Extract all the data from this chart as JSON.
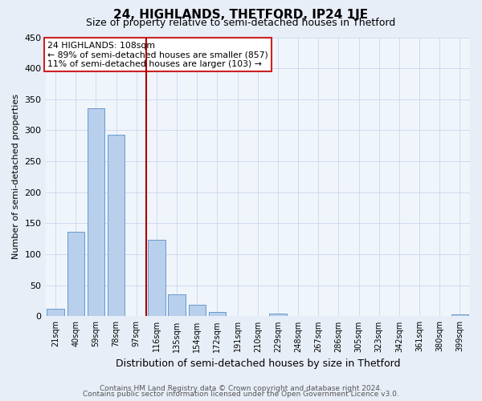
{
  "title": "24, HIGHLANDS, THETFORD, IP24 1JE",
  "subtitle": "Size of property relative to semi-detached houses in Thetford",
  "xlabel": "Distribution of semi-detached houses by size in Thetford",
  "ylabel": "Number of semi-detached properties",
  "bar_labels": [
    "21sqm",
    "40sqm",
    "59sqm",
    "78sqm",
    "97sqm",
    "116sqm",
    "135sqm",
    "154sqm",
    "172sqm",
    "191sqm",
    "210sqm",
    "229sqm",
    "248sqm",
    "267sqm",
    "286sqm",
    "305sqm",
    "323sqm",
    "342sqm",
    "361sqm",
    "380sqm",
    "399sqm"
  ],
  "bar_values": [
    12,
    137,
    336,
    293,
    0,
    124,
    35,
    19,
    7,
    0,
    0,
    5,
    0,
    0,
    0,
    0,
    0,
    0,
    0,
    0,
    3
  ],
  "bar_color": "#b8d0eb",
  "bar_edge_color": "#6699cc",
  "vline_color": "#aa0000",
  "annotation_title": "24 HIGHLANDS: 108sqm",
  "annotation_line1": "← 89% of semi-detached houses are smaller (857)",
  "annotation_line2": "11% of semi-detached houses are larger (103) →",
  "annotation_box_facecolor": "#ffffff",
  "annotation_box_edgecolor": "#cc2222",
  "ylim": [
    0,
    450
  ],
  "yticks": [
    0,
    50,
    100,
    150,
    200,
    250,
    300,
    350,
    400,
    450
  ],
  "footer_line1": "Contains HM Land Registry data © Crown copyright and database right 2024.",
  "footer_line2": "Contains public sector information licensed under the Open Government Licence v3.0.",
  "bg_color": "#e8eef8",
  "plot_bg_color": "#f0f5fc"
}
